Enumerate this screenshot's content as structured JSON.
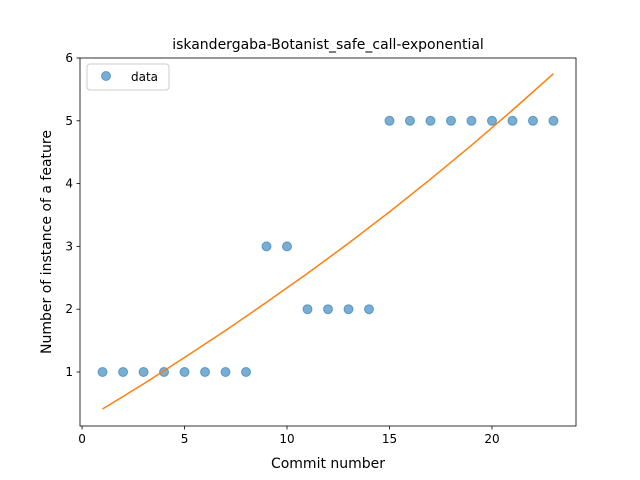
{
  "chart_data": {
    "type": "scatter",
    "title": "iskandergaba-Botanist_safe_call-exponential",
    "xlabel": "Commit number",
    "ylabel": "Number of instance of a feature",
    "xlim": [
      -0.1,
      24.1
    ],
    "ylim": [
      0.14,
      6.0
    ],
    "xticks": [
      0,
      5,
      10,
      15,
      20
    ],
    "yticks": [
      1,
      2,
      3,
      4,
      5,
      6
    ],
    "grid": false,
    "legend_position": "top-left",
    "series": [
      {
        "name": "data",
        "kind": "scatter",
        "color": "#1f77b4",
        "x": [
          1,
          2,
          3,
          4,
          5,
          6,
          7,
          8,
          9,
          10,
          11,
          12,
          13,
          14,
          15,
          16,
          17,
          18,
          19,
          20,
          21,
          22,
          23
        ],
        "y": [
          1,
          1,
          1,
          1,
          1,
          1,
          1,
          1,
          3,
          3,
          2,
          2,
          2,
          2,
          5,
          5,
          5,
          5,
          5,
          5,
          5,
          5,
          5
        ]
      },
      {
        "kind": "line",
        "color": "#ff7f0e",
        "x": [
          1,
          3,
          5,
          7,
          9,
          11,
          13,
          15,
          17,
          19,
          21,
          23
        ],
        "y": [
          0.41,
          0.81,
          1.23,
          1.66,
          2.11,
          2.57,
          3.05,
          3.55,
          4.07,
          4.61,
          5.17,
          5.75
        ]
      }
    ]
  }
}
